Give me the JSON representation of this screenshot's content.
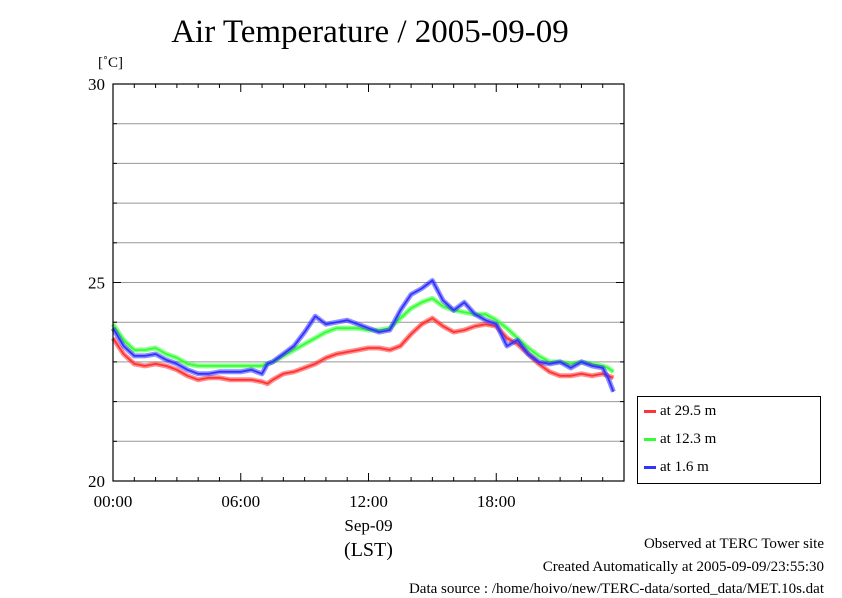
{
  "unit_label": "[˚C]",
  "footer": {
    "line1": "Observed at TERC Tower site",
    "line2": "Created Automatically at 2005-09-09/23:55:30",
    "line3": "Data source : /home/hoivo/new/TERC-data/sorted_data/MET.10s.dat"
  },
  "chart_data": {
    "type": "line",
    "title": "Air Temperature / 2005-09-09",
    "xlabel": "Sep-09",
    "xlabel2": "(LST)",
    "ylabel": "[˚C]",
    "xlim": [
      0,
      24
    ],
    "ylim": [
      20,
      30
    ],
    "x_ticks": [
      {
        "value": 0,
        "label": "00:00"
      },
      {
        "value": 6,
        "label": "06:00"
      },
      {
        "value": 12,
        "label": "12:00"
      },
      {
        "value": 18,
        "label": "18:00"
      }
    ],
    "y_ticks": [
      {
        "value": 20,
        "label": "20"
      },
      {
        "value": 25,
        "label": "25"
      },
      {
        "value": 30,
        "label": "30"
      }
    ],
    "grid_y": [
      21,
      22,
      23,
      24,
      25,
      26,
      27,
      28,
      29
    ],
    "grid": true,
    "legend_position": "right-bottom outside",
    "x": [
      0,
      0.5,
      1,
      1.5,
      2,
      2.5,
      3,
      3.5,
      4,
      4.5,
      5,
      5.5,
      6,
      6.5,
      7,
      7.25,
      7.5,
      8,
      8.5,
      9,
      9.5,
      10,
      10.5,
      11,
      11.5,
      12,
      12.5,
      13,
      13.5,
      14,
      14.5,
      15,
      15.5,
      16,
      16.5,
      17,
      17.5,
      18,
      18.5,
      19,
      19.5,
      20,
      20.5,
      21,
      21.5,
      22,
      22.5,
      23,
      23.25,
      23.5
    ],
    "series": [
      {
        "name": "at 29.5 m",
        "color": "#ff3333",
        "values": [
          23.6,
          23.2,
          22.95,
          22.9,
          22.95,
          22.9,
          22.8,
          22.65,
          22.55,
          22.6,
          22.6,
          22.55,
          22.55,
          22.55,
          22.5,
          22.45,
          22.55,
          22.7,
          22.75,
          22.85,
          22.95,
          23.1,
          23.2,
          23.25,
          23.3,
          23.35,
          23.35,
          23.3,
          23.4,
          23.7,
          23.95,
          24.1,
          23.9,
          23.75,
          23.8,
          23.9,
          23.95,
          23.9,
          23.6,
          23.45,
          23.2,
          22.95,
          22.75,
          22.65,
          22.65,
          22.7,
          22.65,
          22.7,
          22.65,
          22.6
        ]
      },
      {
        "name": "at 12.3 m",
        "color": "#33ff33",
        "values": [
          23.95,
          23.55,
          23.3,
          23.3,
          23.35,
          23.2,
          23.1,
          22.95,
          22.9,
          22.9,
          22.9,
          22.9,
          22.9,
          22.9,
          22.9,
          22.95,
          23.0,
          23.15,
          23.3,
          23.45,
          23.6,
          23.75,
          23.85,
          23.85,
          23.85,
          23.8,
          23.8,
          23.85,
          24.1,
          24.35,
          24.5,
          24.6,
          24.4,
          24.3,
          24.25,
          24.2,
          24.2,
          24.05,
          23.85,
          23.6,
          23.35,
          23.15,
          23.0,
          23.0,
          22.95,
          23.0,
          22.95,
          22.9,
          22.85,
          22.75
        ]
      },
      {
        "name": "at 1.6 m",
        "color": "#3333ff",
        "values": [
          23.85,
          23.4,
          23.15,
          23.15,
          23.2,
          23.05,
          22.95,
          22.8,
          22.7,
          22.7,
          22.75,
          22.75,
          22.75,
          22.8,
          22.7,
          22.95,
          23.0,
          23.2,
          23.4,
          23.75,
          24.15,
          23.95,
          24.0,
          24.05,
          23.95,
          23.85,
          23.75,
          23.8,
          24.3,
          24.7,
          24.85,
          25.05,
          24.55,
          24.3,
          24.5,
          24.2,
          24.05,
          23.95,
          23.4,
          23.55,
          23.2,
          23.0,
          22.95,
          23.0,
          22.85,
          23.0,
          22.9,
          22.85,
          22.6,
          22.25
        ]
      }
    ]
  }
}
